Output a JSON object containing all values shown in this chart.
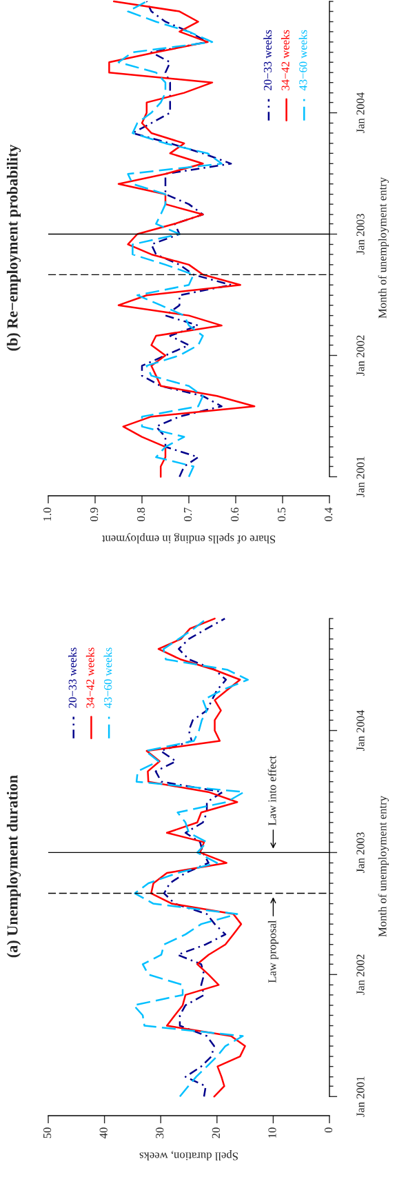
{
  "chart_data": [
    {
      "type": "line",
      "orientation": "horizontal",
      "title": "(b) Re−employment probability",
      "ylabel": "Month of unemployment entry",
      "xlabel": "Share of spells ending in employment",
      "x": [
        "2001-01",
        "2001-02",
        "2001-03",
        "2001-04",
        "2001-05",
        "2001-06",
        "2001-07",
        "2001-08",
        "2001-09",
        "2001-10",
        "2001-11",
        "2001-12",
        "2002-01",
        "2002-02",
        "2002-03",
        "2002-04",
        "2002-05",
        "2002-06",
        "2002-07",
        "2002-08",
        "2002-09",
        "2002-10",
        "2002-11",
        "2002-12",
        "2003-01",
        "2003-02",
        "2003-03",
        "2003-04",
        "2003-05",
        "2003-06",
        "2003-07",
        "2003-08",
        "2003-09",
        "2003-10",
        "2003-11",
        "2003-12",
        "2004-01",
        "2004-02",
        "2004-03",
        "2004-04",
        "2004-05",
        "2004-06",
        "2004-07",
        "2004-08",
        "2004-09",
        "2004-10",
        "2004-11",
        "2004-12"
      ],
      "series": [
        {
          "name": "20−33 weeks",
          "color": "#00008b",
          "line_style": "dashdot",
          "values": [
            0.72,
            0.71,
            0.68,
            0.75,
            0.75,
            0.77,
            0.72,
            0.63,
            0.67,
            0.76,
            0.8,
            0.8,
            0.75,
            0.7,
            0.74,
            0.68,
            0.75,
            0.72,
            0.72,
            0.61,
            0.69,
            0.72,
            0.77,
            0.78,
            0.72,
            0.73,
            0.67,
            0.7,
            0.75,
            0.75,
            0.75,
            0.61,
            0.67,
            0.74,
            0.82,
            0.78,
            0.74,
            0.74,
            0.74,
            0.74,
            0.75,
            0.74,
            0.78,
            0.66,
            0.7,
            0.75,
            0.78,
            0.79
          ]
        },
        {
          "name": "34−42 weeks",
          "color": "#ff0000",
          "line_style": "solid",
          "values": [
            0.76,
            0.76,
            0.75,
            0.75,
            0.8,
            0.84,
            0.78,
            0.56,
            0.64,
            0.76,
            0.77,
            0.78,
            0.75,
            0.78,
            0.77,
            0.63,
            0.7,
            0.85,
            0.79,
            0.59,
            0.67,
            0.7,
            0.78,
            0.83,
            0.81,
            0.73,
            0.67,
            0.75,
            0.75,
            0.85,
            0.75,
            0.67,
            0.74,
            0.71,
            0.78,
            0.8,
            0.79,
            0.79,
            0.71,
            0.65,
            0.87,
            0.87,
            0.77,
            0.66,
            0.72,
            0.68,
            0.72,
            0.86
          ]
        },
        {
          "name": "43−60 weeks",
          "color": "#00bfff",
          "line_style": "dashed",
          "values": [
            0.7,
            0.69,
            0.77,
            0.75,
            0.71,
            0.8,
            0.8,
            0.68,
            0.67,
            0.7,
            0.78,
            0.79,
            0.72,
            0.68,
            0.67,
            0.7,
            0.71,
            0.76,
            0.81,
            0.7,
            0.69,
            0.75,
            0.82,
            0.82,
            0.72,
            0.77,
            0.76,
            0.75,
            0.75,
            0.82,
            0.83,
            0.63,
            0.66,
            0.75,
            0.82,
            0.81,
            0.78,
            0.76,
            0.75,
            0.75,
            0.77,
            0.85,
            0.82,
            0.65,
            0.7,
            0.77,
            0.83,
            0.79
          ]
        }
      ],
      "ylim": [
        "2001-01",
        "2004-12"
      ],
      "yticks": [
        {
          "value": "2001-01",
          "label": "Jan 2001"
        },
        {
          "value": "2001-02",
          "label": null
        },
        {
          "value": "2001-03",
          "label": null
        },
        {
          "value": "2001-04",
          "label": null
        },
        {
          "value": "2001-05",
          "label": null
        },
        {
          "value": "2001-06",
          "label": null
        },
        {
          "value": "2001-07",
          "label": null
        },
        {
          "value": "2001-08",
          "label": null
        },
        {
          "value": "2001-09",
          "label": null
        },
        {
          "value": "2001-10",
          "label": null
        },
        {
          "value": "2001-11",
          "label": null
        },
        {
          "value": "2001-12",
          "label": null
        },
        {
          "value": "2002-01",
          "label": "Jan 2002"
        },
        {
          "value": "2002-02",
          "label": null
        },
        {
          "value": "2002-03",
          "label": null
        },
        {
          "value": "2002-04",
          "label": null
        },
        {
          "value": "2002-05",
          "label": null
        },
        {
          "value": "2002-06",
          "label": null
        },
        {
          "value": "2002-07",
          "label": null
        },
        {
          "value": "2002-08",
          "label": null
        },
        {
          "value": "2002-09",
          "label": null
        },
        {
          "value": "2002-10",
          "label": null
        },
        {
          "value": "2002-11",
          "label": null
        },
        {
          "value": "2002-12",
          "label": null
        },
        {
          "value": "2003-01",
          "label": "Jan 2003"
        },
        {
          "value": "2003-02",
          "label": null
        },
        {
          "value": "2003-03",
          "label": null
        },
        {
          "value": "2003-04",
          "label": null
        },
        {
          "value": "2003-05",
          "label": null
        },
        {
          "value": "2003-06",
          "label": null
        },
        {
          "value": "2003-07",
          "label": null
        },
        {
          "value": "2003-08",
          "label": null
        },
        {
          "value": "2003-09",
          "label": null
        },
        {
          "value": "2003-10",
          "label": null
        },
        {
          "value": "2003-11",
          "label": null
        },
        {
          "value": "2003-12",
          "label": null
        },
        {
          "value": "2004-01",
          "label": "Jan 2004"
        },
        {
          "value": "2004-02",
          "label": null
        },
        {
          "value": "2004-03",
          "label": null
        },
        {
          "value": "2004-04",
          "label": null
        },
        {
          "value": "2004-05",
          "label": null
        },
        {
          "value": "2004-06",
          "label": null
        },
        {
          "value": "2004-07",
          "label": null
        },
        {
          "value": "2004-08",
          "label": null
        },
        {
          "value": "2004-09",
          "label": null
        },
        {
          "value": "2004-10",
          "label": null
        },
        {
          "value": "2004-11",
          "label": null
        },
        {
          "value": "2004-12",
          "label": null
        }
      ],
      "xlim": [
        1.0,
        0.4
      ],
      "xticks": [
        {
          "value": 1.0,
          "label": "1.0"
        },
        0.9,
        0.8,
        0.7,
        0.6,
        0.5,
        0.4
      ],
      "ref_lines": [
        {
          "axis": "y",
          "value": "2002-09",
          "color": "#000000",
          "line_style": "dashed"
        },
        {
          "axis": "y",
          "value": "2003-01",
          "color": "#000000",
          "line_style": "solid"
        }
      ],
      "legend": "top right"
    },
    {
      "type": "line",
      "orientation": "horizontal",
      "title": "(a) Unemployment duration",
      "ylabel": "Month of unemployment entry",
      "xlabel": "Spell duration, weeks",
      "x": [
        "2001-01",
        "2001-02",
        "2001-03",
        "2001-04",
        "2001-05",
        "2001-06",
        "2001-07",
        "2001-08",
        "2001-09",
        "2001-10",
        "2001-11",
        "2001-12",
        "2002-01",
        "2002-02",
        "2002-03",
        "2002-04",
        "2002-05",
        "2002-06",
        "2002-07",
        "2002-08",
        "2002-09",
        "2002-10",
        "2002-11",
        "2002-12",
        "2003-01",
        "2003-02",
        "2003-03",
        "2003-04",
        "2003-05",
        "2003-06",
        "2003-07",
        "2003-08",
        "2003-09",
        "2003-10",
        "2003-11",
        "2003-12",
        "2004-01",
        "2004-02",
        "2004-03",
        "2004-04",
        "2004-05",
        "2004-06",
        "2004-07",
        "2004-08",
        "2004-09",
        "2004-10",
        "2004-11",
        "2004-12"
      ],
      "series": [
        {
          "name": "20−33 weeks",
          "color": "#00008b",
          "line_style": "dashdot",
          "values": [
            22.3,
            22.0,
            25.6,
            22.8,
            21.0,
            20.5,
            21.8,
            26.6,
            26.6,
            25.6,
            22.3,
            22.8,
            22.3,
            22.8,
            27.0,
            22.0,
            18.5,
            20.4,
            21.8,
            27.5,
            29.4,
            28.4,
            25.6,
            21.5,
            22.5,
            23.0,
            25.6,
            22.5,
            21.8,
            21.8,
            19.0,
            29.9,
            30.9,
            27.3,
            30.0,
            24.5,
            25.0,
            24.3,
            21.8,
            20.9,
            20.0,
            18.4,
            20.4,
            25.0,
            26.8,
            25.0,
            21.8,
            18.6
          ]
        },
        {
          "name": "34−42 weeks",
          "color": "#ff0000",
          "line_style": "solid",
          "values": [
            20.5,
            18.7,
            19.2,
            19.9,
            15.9,
            15.0,
            17.5,
            28.9,
            27.5,
            26.1,
            25.6,
            19.7,
            21.5,
            23.5,
            21.5,
            18.5,
            17.1,
            15.7,
            17.1,
            28.0,
            31.7,
            31.3,
            28.9,
            18.3,
            23.0,
            22.3,
            28.9,
            23.5,
            22.8,
            16.4,
            21.5,
            32.2,
            32.3,
            30.2,
            32.5,
            19.5,
            20.4,
            20.4,
            19.3,
            20.4,
            18.2,
            15.9,
            20.5,
            26.5,
            30.4,
            26.4,
            24.8,
            20.4
          ]
        },
        {
          "name": "43−60 weeks",
          "color": "#00bfff",
          "line_style": "dashed",
          "values": [
            26.6,
            25.1,
            23.7,
            21.8,
            20.0,
            18.5,
            15.4,
            32.9,
            33.2,
            34.8,
            26.1,
            26.1,
            32.2,
            33.2,
            29.9,
            29.4,
            25.6,
            22.8,
            16.4,
            31.3,
            34.6,
            32.2,
            27.0,
            20.0,
            23.5,
            21.8,
            25.0,
            25.6,
            27.0,
            18.3,
            15.2,
            34.3,
            34.1,
            30.4,
            32.7,
            24.1,
            23.2,
            22.7,
            21.8,
            22.5,
            19.1,
            14.5,
            18.2,
            29.1,
            29.5,
            26.8,
            24.1,
            21.8
          ]
        }
      ],
      "ylim": [
        "2001-01",
        "2004-12"
      ],
      "yticks": [
        {
          "value": "2001-01",
          "label": "Jan 2001"
        },
        {
          "value": "2001-02",
          "label": null
        },
        {
          "value": "2001-03",
          "label": null
        },
        {
          "value": "2001-04",
          "label": null
        },
        {
          "value": "2001-05",
          "label": null
        },
        {
          "value": "2001-06",
          "label": null
        },
        {
          "value": "2001-07",
          "label": null
        },
        {
          "value": "2001-08",
          "label": null
        },
        {
          "value": "2001-09",
          "label": null
        },
        {
          "value": "2001-10",
          "label": null
        },
        {
          "value": "2001-11",
          "label": null
        },
        {
          "value": "2001-12",
          "label": null
        },
        {
          "value": "2002-01",
          "label": "Jan 2002"
        },
        {
          "value": "2002-02",
          "label": null
        },
        {
          "value": "2002-03",
          "label": null
        },
        {
          "value": "2002-04",
          "label": null
        },
        {
          "value": "2002-05",
          "label": null
        },
        {
          "value": "2002-06",
          "label": null
        },
        {
          "value": "2002-07",
          "label": null
        },
        {
          "value": "2002-08",
          "label": null
        },
        {
          "value": "2002-09",
          "label": null
        },
        {
          "value": "2002-10",
          "label": null
        },
        {
          "value": "2002-11",
          "label": null
        },
        {
          "value": "2002-12",
          "label": null
        },
        {
          "value": "2003-01",
          "label": "Jan 2003"
        },
        {
          "value": "2003-02",
          "label": null
        },
        {
          "value": "2003-03",
          "label": null
        },
        {
          "value": "2003-04",
          "label": null
        },
        {
          "value": "2003-05",
          "label": null
        },
        {
          "value": "2003-06",
          "label": null
        },
        {
          "value": "2003-07",
          "label": null
        },
        {
          "value": "2003-08",
          "label": null
        },
        {
          "value": "2003-09",
          "label": null
        },
        {
          "value": "2003-10",
          "label": null
        },
        {
          "value": "2003-11",
          "label": null
        },
        {
          "value": "2003-12",
          "label": null
        },
        {
          "value": "2004-01",
          "label": "Jan 2004"
        },
        {
          "value": "2004-02",
          "label": null
        },
        {
          "value": "2004-03",
          "label": null
        },
        {
          "value": "2004-04",
          "label": null
        },
        {
          "value": "2004-05",
          "label": null
        },
        {
          "value": "2004-06",
          "label": null
        },
        {
          "value": "2004-07",
          "label": null
        },
        {
          "value": "2004-08",
          "label": null
        },
        {
          "value": "2004-09",
          "label": null
        },
        {
          "value": "2004-10",
          "label": null
        },
        {
          "value": "2004-11",
          "label": null
        },
        {
          "value": "2004-12",
          "label": null
        }
      ],
      "xlim": [
        50,
        0
      ],
      "xticks": [
        50,
        40,
        30,
        20,
        10,
        0
      ],
      "ref_lines": [
        {
          "axis": "y",
          "value": "2002-09",
          "color": "#000000",
          "line_style": "dashed"
        },
        {
          "axis": "y",
          "value": "2003-01",
          "color": "#000000",
          "line_style": "solid"
        }
      ],
      "annotations": [
        {
          "text": "Law proposal",
          "x": 10,
          "y": "2002-09"
        },
        {
          "text": "Law into effect",
          "x": 10,
          "y": "2003-01"
        }
      ],
      "legend": "top left"
    }
  ]
}
